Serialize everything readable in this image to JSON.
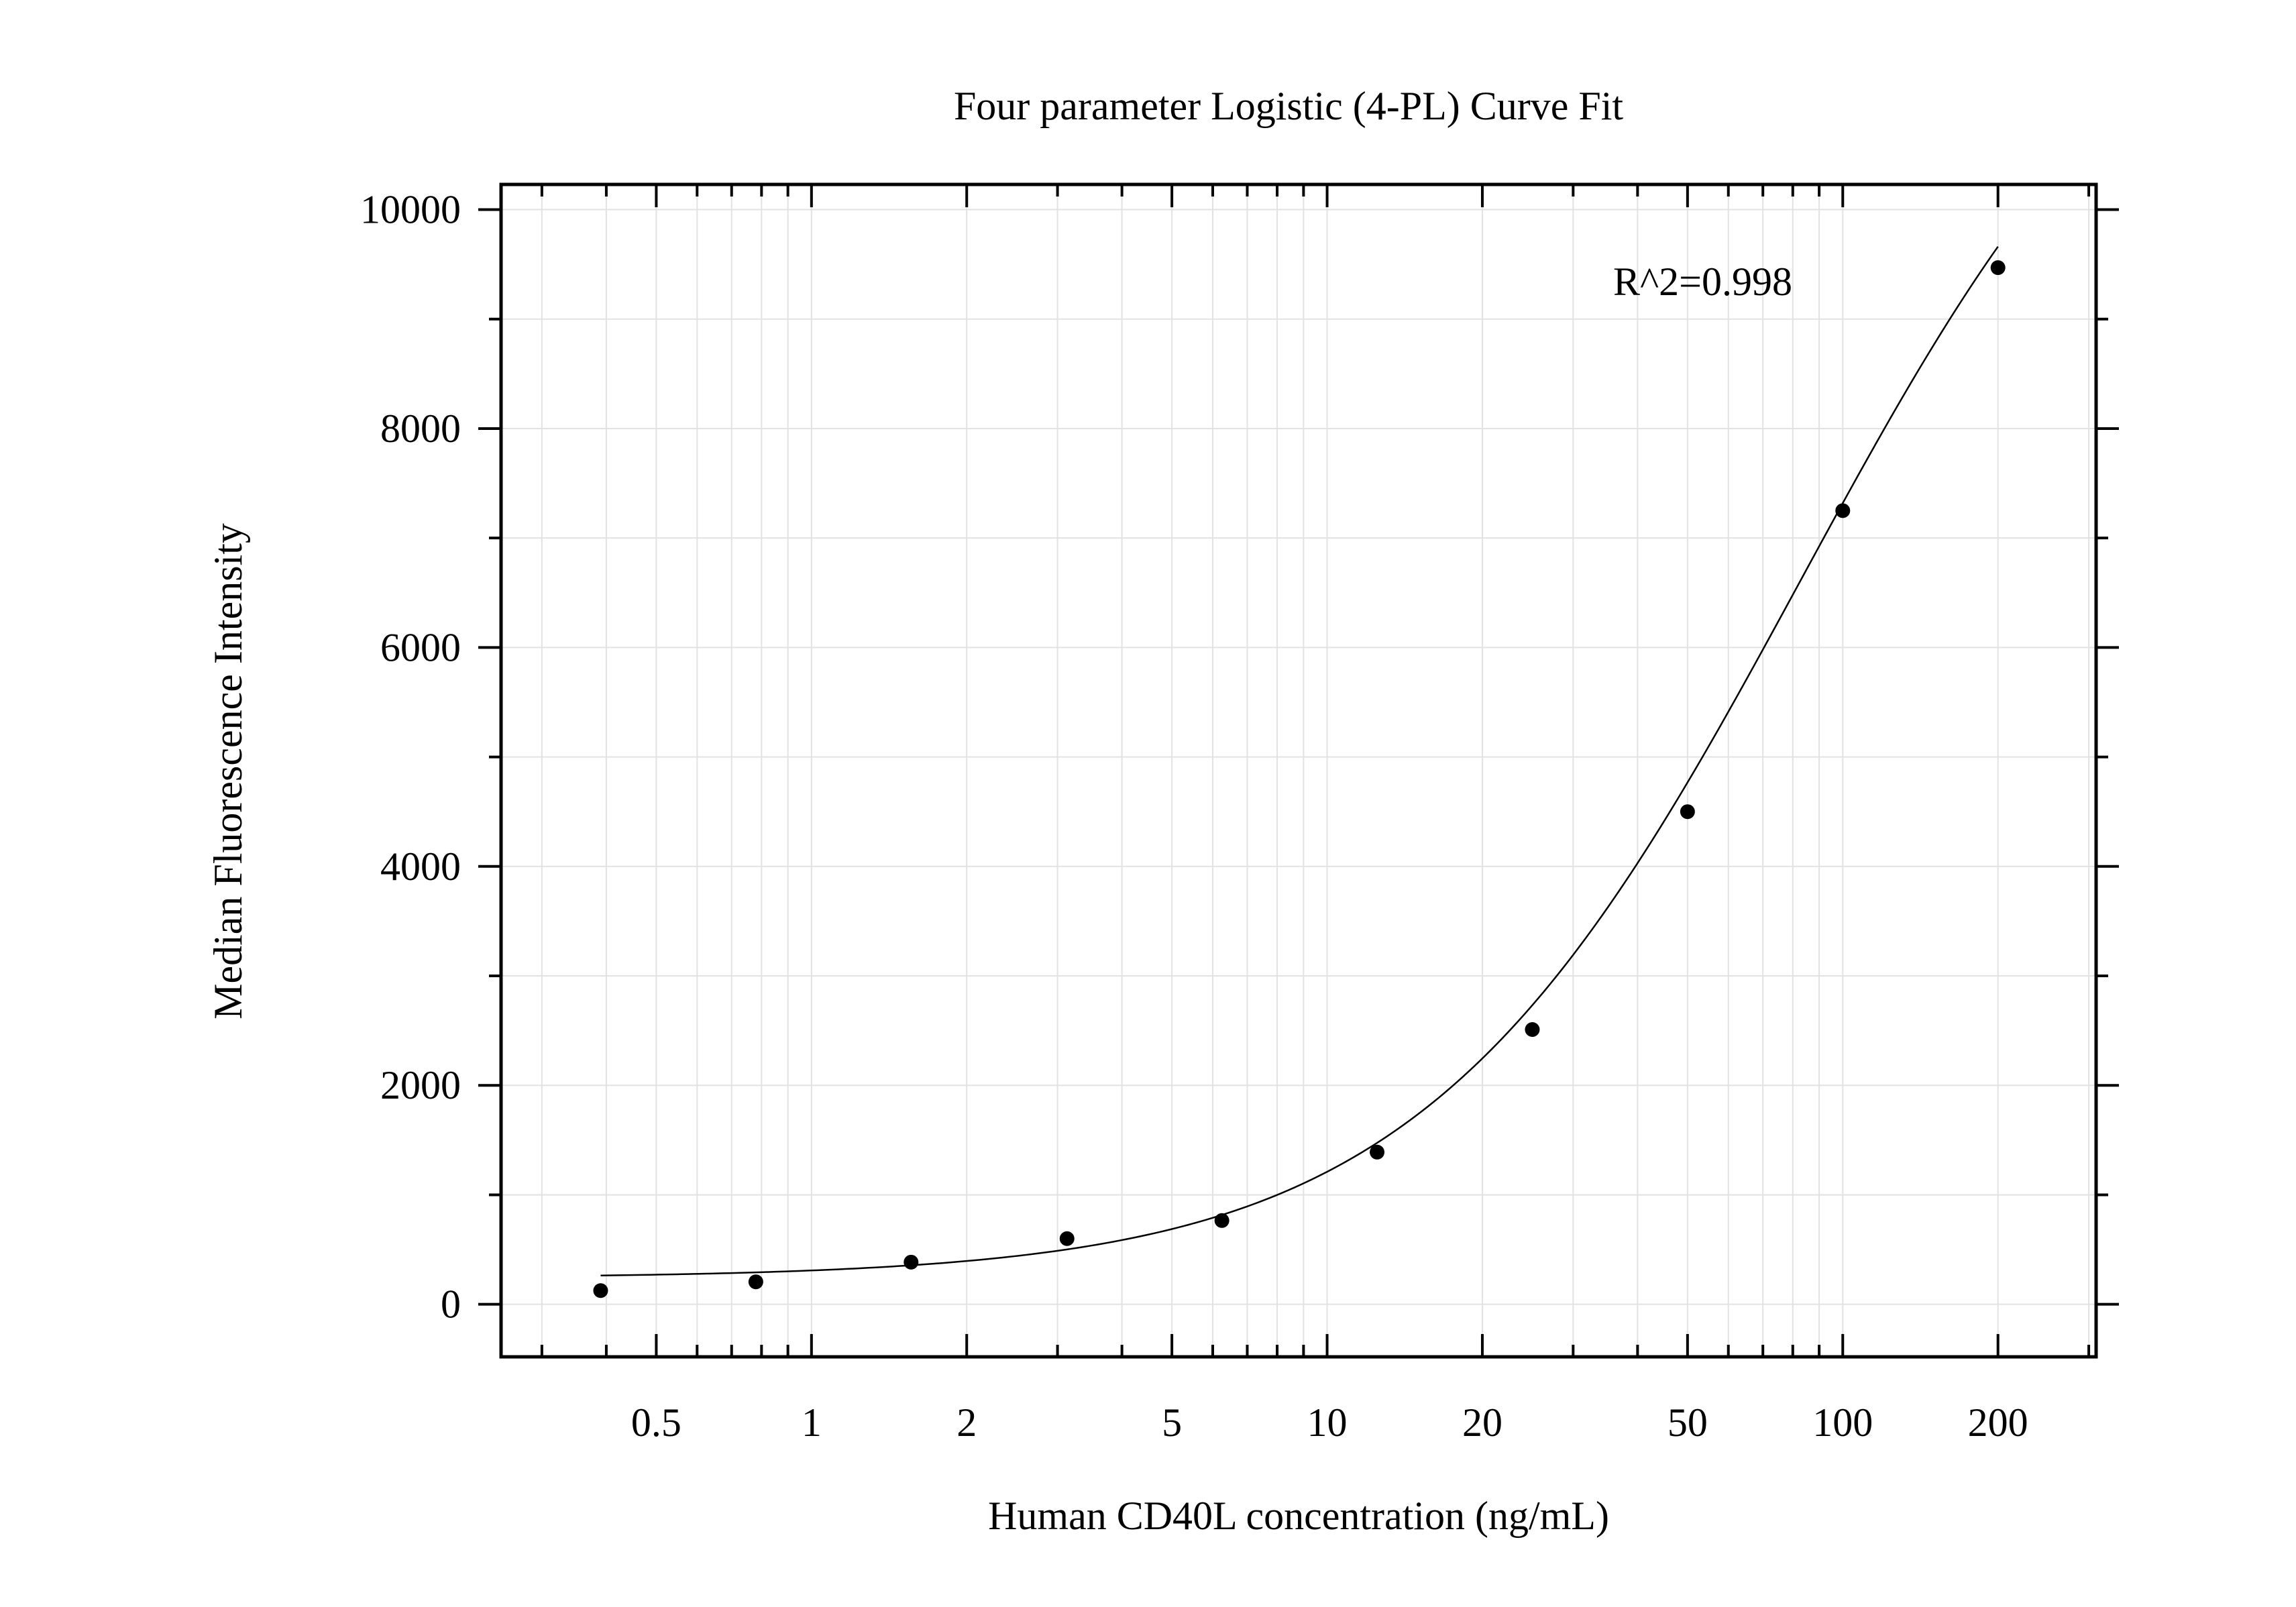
{
  "chart_data": {
    "type": "scatter",
    "title": "Four parameter Logistic (4-PL) Curve Fit",
    "xlabel": "Human CD40L concentration (ng/mL)",
    "ylabel": "Median Fluorescence Intensity",
    "x_scale": "log",
    "xlim": [
      0.25,
      310
    ],
    "ylim": [
      -480,
      10230
    ],
    "grid": true,
    "x_ticks": [
      {
        "value": 0.5,
        "label": "0.5"
      },
      {
        "value": 1,
        "label": "1"
      },
      {
        "value": 2,
        "label": "2"
      },
      {
        "value": 5,
        "label": "5"
      },
      {
        "value": 10,
        "label": "10"
      },
      {
        "value": 20,
        "label": "20"
      },
      {
        "value": 50,
        "label": "50"
      },
      {
        "value": 100,
        "label": "100"
      },
      {
        "value": 200,
        "label": "200"
      }
    ],
    "y_ticks": [
      {
        "value": 0,
        "label": "0"
      },
      {
        "value": 2000,
        "label": "2000"
      },
      {
        "value": 4000,
        "label": "4000"
      },
      {
        "value": 6000,
        "label": "6000"
      },
      {
        "value": 8000,
        "label": "8000"
      },
      {
        "value": 10000,
        "label": "10000"
      }
    ],
    "annotation": "R^2=0.998",
    "points": [
      {
        "x": 0.39,
        "y": 125
      },
      {
        "x": 0.78,
        "y": 205
      },
      {
        "x": 1.56,
        "y": 385
      },
      {
        "x": 3.13,
        "y": 600
      },
      {
        "x": 6.25,
        "y": 765
      },
      {
        "x": 12.5,
        "y": 1390
      },
      {
        "x": 25,
        "y": 2510
      },
      {
        "x": 50,
        "y": 4500
      },
      {
        "x": 100,
        "y": 7250
      },
      {
        "x": 200,
        "y": 9470
      }
    ],
    "fit_curve": {
      "model": "4PL",
      "bottom": 240,
      "top": 13000,
      "ec50": 83,
      "hill": 1.18,
      "x_range": [
        0.39,
        200
      ]
    }
  }
}
